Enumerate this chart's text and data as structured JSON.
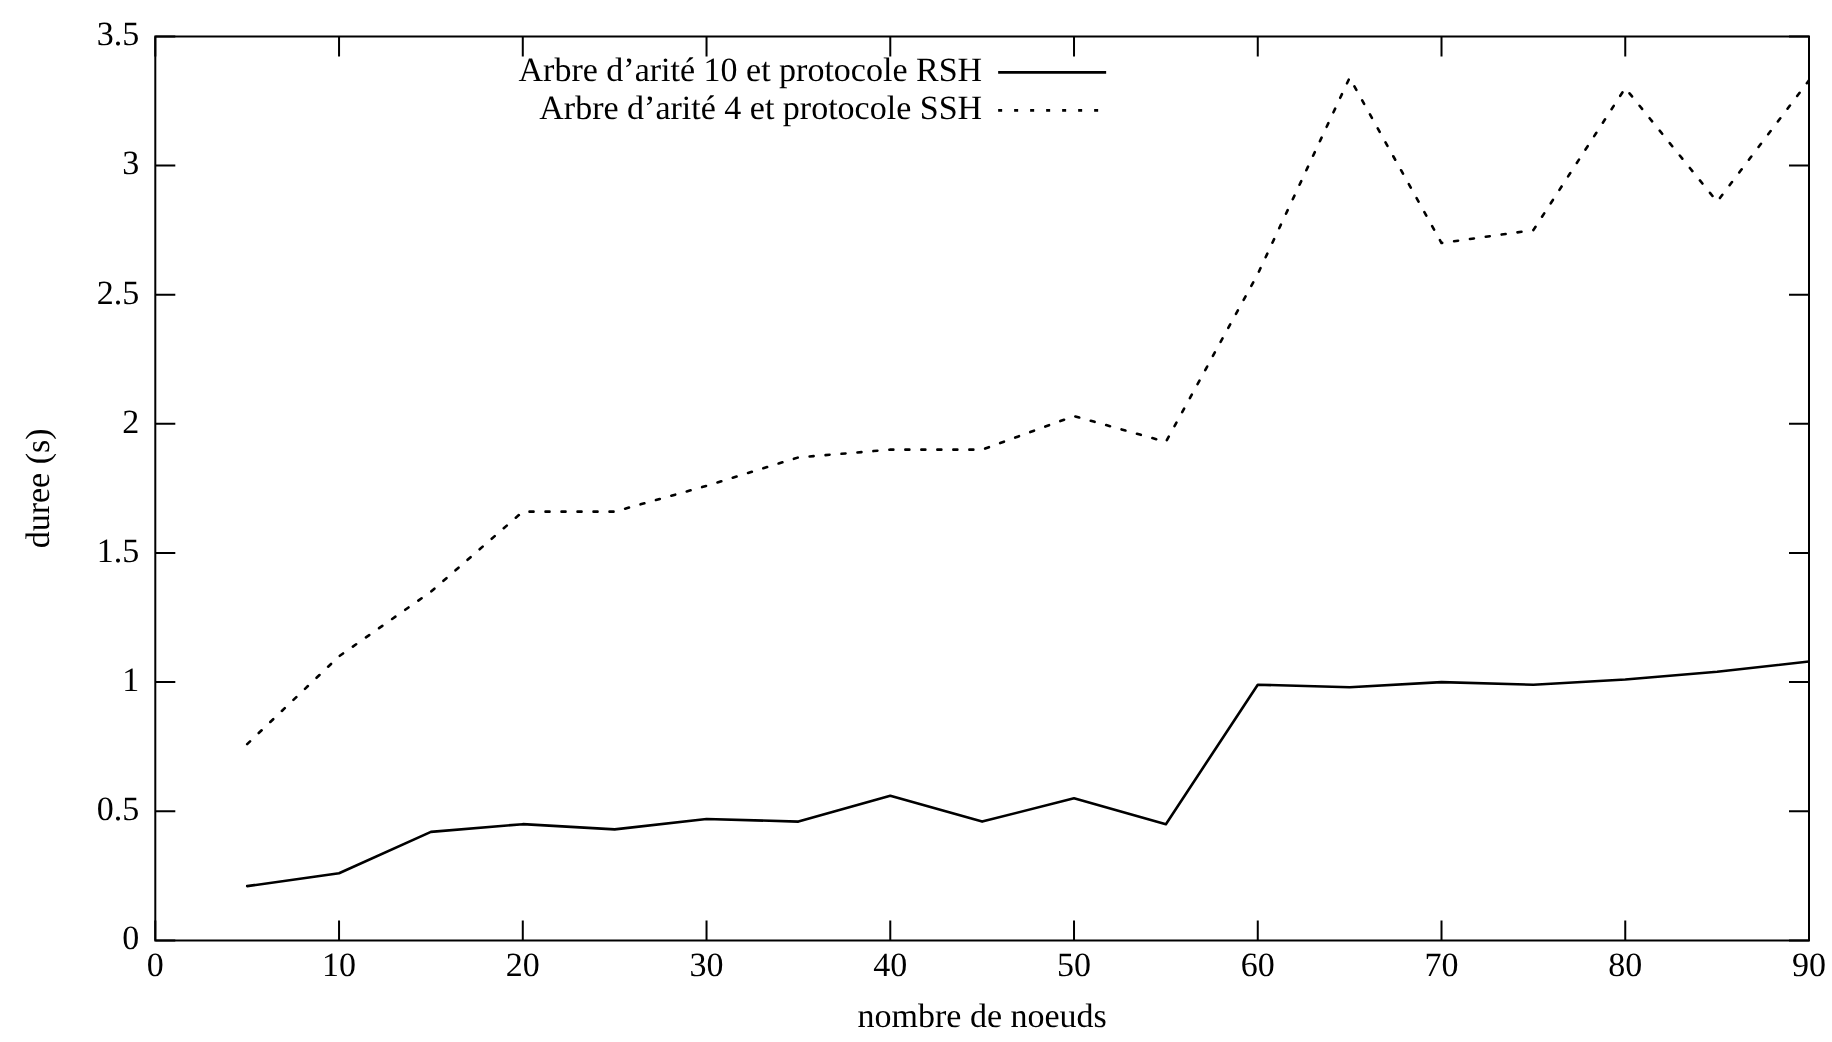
{
  "chart_data": {
    "type": "line",
    "xlabel": "nombre de noeuds",
    "ylabel": "duree (s)",
    "x": [
      5,
      10,
      15,
      20,
      25,
      30,
      35,
      40,
      45,
      50,
      55,
      60,
      65,
      70,
      75,
      80,
      85,
      90
    ],
    "series": [
      {
        "name": "Arbre d’arité 10 et protocole RSH",
        "color": "#000000",
        "line_style": "solid",
        "values": [
          0.21,
          0.26,
          0.42,
          0.45,
          0.43,
          0.47,
          0.46,
          0.56,
          0.46,
          0.55,
          0.45,
          0.99,
          0.98,
          1.0,
          0.99,
          1.01,
          1.04,
          1.08
        ]
      },
      {
        "name": "Arbre d’arité 4 et protocole SSH",
        "color": "#000000",
        "line_style": "dotted",
        "values": [
          0.76,
          1.1,
          1.35,
          1.66,
          1.66,
          1.76,
          1.87,
          1.9,
          1.9,
          2.03,
          1.93,
          2.58,
          3.34,
          2.7,
          2.75,
          3.3,
          2.86,
          3.33
        ]
      }
    ],
    "xlim": [
      0,
      90
    ],
    "xticks": [
      0,
      10,
      20,
      30,
      40,
      50,
      60,
      70,
      80,
      90
    ],
    "ylim": [
      0,
      3.5
    ],
    "yticks": [
      0,
      0.5,
      1,
      1.5,
      2,
      2.5,
      3,
      3.5
    ],
    "grid": false,
    "legend": "top",
    "marker": "none"
  }
}
